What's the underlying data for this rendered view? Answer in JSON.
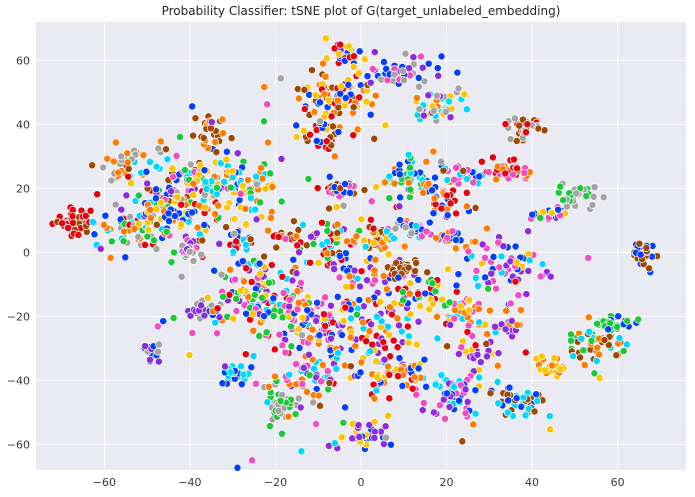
{
  "chart_data": {
    "type": "scatter",
    "title": "Probability Classifier: tSNE plot of G(target_unlabeled_embedding)",
    "xlabel": "",
    "ylabel": "",
    "xlim": [
      -76,
      76
    ],
    "ylim": [
      -68,
      72
    ],
    "xticks": [
      -60,
      -40,
      -20,
      0,
      20,
      40,
      60
    ],
    "yticks": [
      -60,
      -40,
      -20,
      0,
      20,
      40,
      60
    ],
    "xtick_labels": [
      "−60",
      "−40",
      "−20",
      "0",
      "20",
      "40",
      "60"
    ],
    "ytick_labels": [
      "−60",
      "−40",
      "−20",
      "0",
      "20",
      "40",
      "60"
    ],
    "grid": true,
    "legend": "none",
    "style": {
      "background": "#eaeaf2",
      "grid_color": "#ffffff",
      "marker_edge": "#ffffff"
    },
    "palette": [
      "#023eff",
      "#ff7c00",
      "#1ac938",
      "#e8000b",
      "#8b2be2",
      "#9f4800",
      "#f14cc1",
      "#a3a3a3",
      "#ffc400",
      "#00d7ff"
    ],
    "clusters": [
      {
        "center": [
          -67,
          10
        ],
        "spread": [
          2.5,
          2.0
        ],
        "count": 45,
        "mix": [
          3,
          3,
          3,
          5
        ]
      },
      {
        "center": [
          -55,
          26
        ],
        "spread": [
          3.0,
          3.0
        ],
        "count": 35,
        "mix": [
          7,
          1,
          7,
          9,
          2,
          3
        ]
      },
      {
        "center": [
          -54,
          8
        ],
        "spread": [
          5.0,
          4.0
        ],
        "count": 55,
        "mix": [
          7,
          0,
          2,
          3,
          9,
          1
        ]
      },
      {
        "center": [
          -42,
          18
        ],
        "spread": [
          6.0,
          8.0
        ],
        "count": 130,
        "mix": [
          0,
          1,
          2,
          3,
          4,
          5,
          6,
          7,
          8,
          9
        ]
      },
      {
        "center": [
          -40,
          0
        ],
        "spread": [
          1.5,
          2.0
        ],
        "count": 20,
        "mix": [
          4,
          7,
          6
        ]
      },
      {
        "center": [
          -34,
          22
        ],
        "spread": [
          4.0,
          5.0
        ],
        "count": 50,
        "mix": [
          9,
          8,
          2,
          0,
          1
        ]
      },
      {
        "center": [
          -35,
          38
        ],
        "spread": [
          2.0,
          3.0
        ],
        "count": 28,
        "mix": [
          5,
          1
        ]
      },
      {
        "center": [
          -25,
          18
        ],
        "spread": [
          4.0,
          4.0
        ],
        "count": 35,
        "mix": [
          9,
          2,
          8,
          1
        ]
      },
      {
        "center": [
          -29,
          4
        ],
        "spread": [
          2.0,
          2.0
        ],
        "count": 20,
        "mix": [
          0,
          9,
          3
        ]
      },
      {
        "center": [
          -17,
          5
        ],
        "spread": [
          5.0,
          1.5
        ],
        "count": 25,
        "mix": [
          3,
          1,
          5
        ]
      },
      {
        "center": [
          -38,
          -18
        ],
        "spread": [
          2.0,
          1.5
        ],
        "count": 30,
        "mix": [
          4,
          0,
          7
        ]
      },
      {
        "center": [
          -49,
          -31
        ],
        "spread": [
          1.5,
          1.5
        ],
        "count": 15,
        "mix": [
          7,
          4,
          0
        ]
      },
      {
        "center": [
          -29,
          -39
        ],
        "spread": [
          2.0,
          2.0
        ],
        "count": 22,
        "mix": [
          0,
          9
        ]
      },
      {
        "center": [
          -25,
          -12
        ],
        "spread": [
          6.0,
          7.0
        ],
        "count": 110,
        "mix": [
          0,
          1,
          2,
          3,
          4,
          6,
          8,
          9
        ]
      },
      {
        "center": [
          -15,
          -20
        ],
        "spread": [
          6.0,
          4.0
        ],
        "count": 70,
        "mix": [
          6,
          0,
          4,
          8,
          2
        ]
      },
      {
        "center": [
          -18,
          -47
        ],
        "spread": [
          3.0,
          3.0
        ],
        "count": 40,
        "mix": [
          2,
          7
        ]
      },
      {
        "center": [
          -8,
          -25
        ],
        "spread": [
          4.0,
          8.0
        ],
        "count": 65,
        "mix": [
          4,
          6,
          3,
          0,
          1,
          8
        ]
      },
      {
        "center": [
          -12,
          -38
        ],
        "spread": [
          4.0,
          4.0
        ],
        "count": 40,
        "mix": [
          6,
          1,
          4,
          9
        ]
      },
      {
        "center": [
          -3,
          62
        ],
        "spread": [
          2.5,
          2.0
        ],
        "count": 32,
        "mix": [
          8,
          3,
          4,
          0
        ]
      },
      {
        "center": [
          -6,
          48
        ],
        "spread": [
          5.0,
          4.0
        ],
        "count": 90,
        "mix": [
          8,
          0,
          5,
          3,
          1
        ]
      },
      {
        "center": [
          -8,
          37
        ],
        "spread": [
          3.0,
          3.0
        ],
        "count": 30,
        "mix": [
          3,
          5,
          0,
          8
        ]
      },
      {
        "center": [
          -5,
          20
        ],
        "spread": [
          2.0,
          1.5
        ],
        "count": 25,
        "mix": [
          6,
          5,
          3,
          0
        ]
      },
      {
        "center": [
          -7,
          4
        ],
        "spread": [
          3.0,
          3.0
        ],
        "count": 30,
        "mix": [
          9,
          4,
          2,
          3
        ]
      },
      {
        "center": [
          3,
          4
        ],
        "spread": [
          4.0,
          3.0
        ],
        "count": 40,
        "mix": [
          5,
          1,
          3,
          8
        ]
      },
      {
        "center": [
          3,
          -10
        ],
        "spread": [
          5.0,
          5.0
        ],
        "count": 60,
        "mix": [
          4,
          6,
          1,
          3,
          0
        ]
      },
      {
        "center": [
          5,
          -27
        ],
        "spread": [
          4.0,
          5.0
        ],
        "count": 55,
        "mix": [
          3,
          1,
          8,
          4,
          9
        ]
      },
      {
        "center": [
          0,
          -57
        ],
        "spread": [
          2.5,
          3.0
        ],
        "count": 38,
        "mix": [
          0,
          8,
          4
        ]
      },
      {
        "center": [
          10,
          56
        ],
        "spread": [
          4.0,
          3.0
        ],
        "count": 45,
        "mix": [
          4,
          7,
          6,
          0
        ]
      },
      {
        "center": [
          18,
          46
        ],
        "spread": [
          3.0,
          3.0
        ],
        "count": 45,
        "mix": [
          7,
          8,
          4,
          9,
          1
        ]
      },
      {
        "center": [
          13,
          23
        ],
        "spread": [
          4.0,
          3.0
        ],
        "count": 60,
        "mix": [
          2,
          0,
          9,
          1
        ]
      },
      {
        "center": [
          25,
          24
        ],
        "spread": [
          2.0,
          2.0
        ],
        "count": 22,
        "mix": [
          0,
          6,
          9
        ]
      },
      {
        "center": [
          20,
          15
        ],
        "spread": [
          2.0,
          3.0
        ],
        "count": 28,
        "mix": [
          0,
          3,
          1
        ]
      },
      {
        "center": [
          11,
          7
        ],
        "spread": [
          3.0,
          2.0
        ],
        "count": 30,
        "mix": [
          9,
          7,
          6,
          0
        ]
      },
      {
        "center": [
          10,
          -5
        ],
        "spread": [
          2.0,
          1.5
        ],
        "count": 25,
        "mix": [
          5
        ]
      },
      {
        "center": [
          22,
          4
        ],
        "spread": [
          3.0,
          2.0
        ],
        "count": 25,
        "mix": [
          1,
          0,
          6
        ]
      },
      {
        "center": [
          34,
          26
        ],
        "spread": [
          3.0,
          2.0
        ],
        "count": 35,
        "mix": [
          6,
          1,
          3
        ]
      },
      {
        "center": [
          38,
          39
        ],
        "spread": [
          2.0,
          1.5
        ],
        "count": 32,
        "mix": [
          3,
          5,
          7
        ]
      },
      {
        "center": [
          51,
          18
        ],
        "spread": [
          2.5,
          2.0
        ],
        "count": 30,
        "mix": [
          2,
          7
        ]
      },
      {
        "center": [
          44,
          12
        ],
        "spread": [
          2.0,
          1.5
        ],
        "count": 22,
        "mix": [
          4,
          6,
          0,
          8
        ]
      },
      {
        "center": [
          34,
          -5
        ],
        "spread": [
          5.0,
          4.0
        ],
        "count": 60,
        "mix": [
          6,
          4,
          9,
          8,
          0
        ]
      },
      {
        "center": [
          25,
          -20
        ],
        "spread": [
          4.0,
          4.0
        ],
        "count": 40,
        "mix": [
          6,
          1,
          8,
          9
        ]
      },
      {
        "center": [
          28,
          -33
        ],
        "spread": [
          2.0,
          3.0
        ],
        "count": 20,
        "mix": [
          8,
          4
        ]
      },
      {
        "center": [
          35,
          -23
        ],
        "spread": [
          2.0,
          1.5
        ],
        "count": 22,
        "mix": [
          4,
          1
        ]
      },
      {
        "center": [
          22,
          -44
        ],
        "spread": [
          4.0,
          4.0
        ],
        "count": 60,
        "mix": [
          9,
          0,
          6,
          4
        ]
      },
      {
        "center": [
          37,
          -47
        ],
        "spread": [
          3.0,
          2.0
        ],
        "count": 45,
        "mix": [
          9,
          0,
          5
        ]
      },
      {
        "center": [
          45,
          -36
        ],
        "spread": [
          2.0,
          1.5
        ],
        "count": 22,
        "mix": [
          8,
          1
        ]
      },
      {
        "center": [
          54,
          -29
        ],
        "spread": [
          4.0,
          4.0
        ],
        "count": 55,
        "mix": [
          5,
          2,
          9,
          1
        ]
      },
      {
        "center": [
          60,
          -22
        ],
        "spread": [
          2.5,
          1.5
        ],
        "count": 25,
        "mix": [
          2,
          0
        ]
      },
      {
        "center": [
          66,
          0
        ],
        "spread": [
          1.5,
          2.0
        ],
        "count": 28,
        "mix": [
          0,
          5
        ]
      },
      {
        "center": [
          16,
          -12
        ],
        "spread": [
          3.0,
          4.0
        ],
        "count": 35,
        "mix": [
          8,
          0,
          3,
          2
        ]
      },
      {
        "center": [
          8,
          -38
        ],
        "spread": [
          4.0,
          3.0
        ],
        "count": 40,
        "mix": [
          3,
          8,
          1,
          0
        ]
      },
      {
        "center": [
          -46,
          12
        ],
        "spread": [
          4.0,
          3.0
        ],
        "count": 35,
        "mix": [
          8,
          1,
          0
        ]
      },
      {
        "center": [
          0,
          -30
        ],
        "spread": [
          20.0,
          25.0
        ],
        "count": 80,
        "mix": [
          0,
          1,
          2,
          3,
          4,
          5,
          6,
          7,
          8,
          9
        ]
      },
      {
        "center": [
          -10,
          15
        ],
        "spread": [
          25.0,
          15.0
        ],
        "count": 60,
        "mix": [
          0,
          1,
          2,
          3,
          4,
          5,
          6,
          7,
          8,
          9
        ]
      }
    ]
  }
}
